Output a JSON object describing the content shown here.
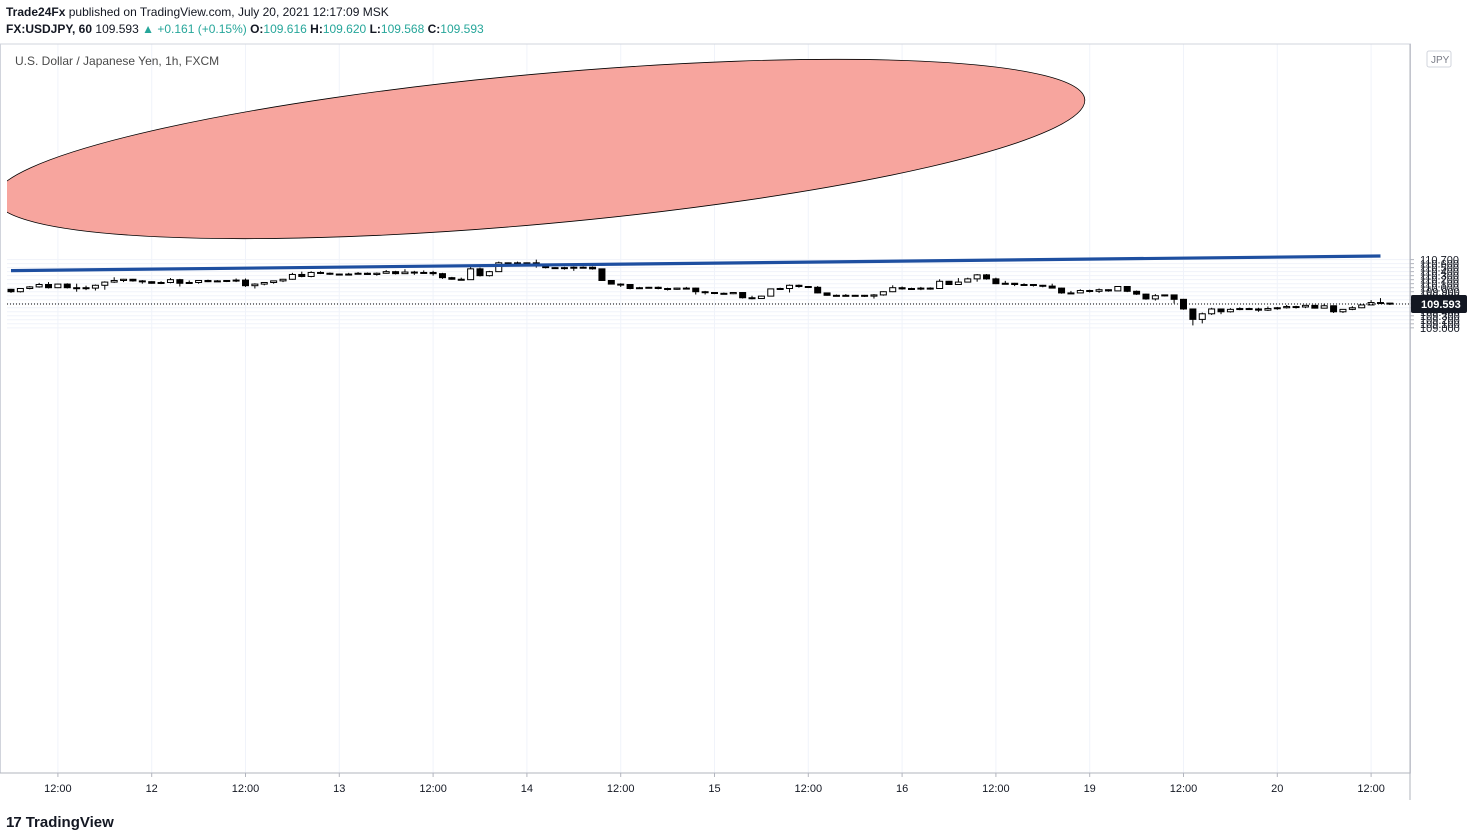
{
  "header": {
    "author": "Trade24Fx",
    "published_text": "published on TradingView.com, July 20, 2021 12:17:09 MSK",
    "symbol": "FX:USDJPY, 60",
    "last": "109.593",
    "change": "▲ +0.161 (+0.15%)",
    "o_label": "O:",
    "o_value": "109.616",
    "h_label": "H:",
    "h_value": "109.620",
    "l_label": "L:",
    "l_value": "109.568",
    "c_label": "C:",
    "c_value": "109.593"
  },
  "footer": {
    "brand": "TradingView",
    "logo_mark": "17"
  },
  "colors": {
    "up_fill": "#ffffff",
    "down_fill": "#000000",
    "wick": "#000000",
    "ellipse_fill": "#f7a099",
    "trendline": "#1e4fa0",
    "grid": "#f0f3fa",
    "price_tag_bg": "#131722",
    "change_text": "#26a69a"
  },
  "chart_data": {
    "type": "candlestick",
    "title": "U.S. Dollar / Japanese Yen, 1h, FXCM",
    "currency_label": "JPY",
    "current_price": "109.593",
    "ylim": [
      108.98,
      110.74
    ],
    "y_ticks": [
      "110.700",
      "110.600",
      "110.500",
      "110.400",
      "110.300",
      "110.200",
      "110.100",
      "110.000",
      "109.900",
      "109.800",
      "109.700",
      "109.600",
      "109.500",
      "109.400",
      "109.300",
      "109.200",
      "109.100",
      "109.000"
    ],
    "x_ticks": [
      "12:00",
      "12",
      "12:00",
      "13",
      "12:00",
      "14",
      "12:00",
      "15",
      "12:00",
      "16",
      "12:00",
      "19",
      "12:00",
      "20",
      "12:00"
    ],
    "x_tick_index": [
      5,
      15,
      25,
      35,
      45,
      55,
      65,
      75,
      85,
      95,
      105,
      115,
      125,
      135,
      145
    ],
    "annotations": [
      {
        "type": "ellipse",
        "note": "highlighted zone around upper trendline"
      },
      {
        "type": "trendline",
        "from": {
          "index": 0,
          "price": 110.425
        },
        "to": {
          "index": 146,
          "price": 110.79
        }
      }
    ],
    "candles": [
      [
        109.96,
        109.9,
        109.97,
        109.87
      ],
      [
        109.9,
        109.98,
        109.99,
        109.88
      ],
      [
        109.98,
        110.02,
        110.04,
        109.96
      ],
      [
        110.02,
        110.08,
        110.12,
        110.0
      ],
      [
        110.08,
        110.0,
        110.14,
        109.98
      ],
      [
        110.0,
        110.09,
        110.1,
        109.99
      ],
      [
        110.09,
        110.0,
        110.11,
        109.98
      ],
      [
        110.0,
        110.0,
        110.1,
        109.9
      ],
      [
        110.0,
        109.99,
        110.05,
        109.94
      ],
      [
        109.99,
        110.06,
        110.08,
        109.93
      ],
      [
        110.06,
        110.14,
        110.16,
        109.95
      ],
      [
        110.14,
        110.18,
        110.26,
        110.12
      ],
      [
        110.18,
        110.21,
        110.22,
        110.14
      ],
      [
        110.21,
        110.17,
        110.22,
        110.15
      ],
      [
        110.17,
        110.15,
        110.19,
        110.1
      ],
      [
        110.15,
        110.11,
        110.16,
        110.1
      ],
      [
        110.11,
        110.13,
        110.16,
        110.09
      ],
      [
        110.13,
        110.2,
        110.24,
        110.11
      ],
      [
        110.2,
        110.11,
        110.22,
        110.03
      ],
      [
        110.11,
        110.13,
        110.18,
        110.1
      ],
      [
        110.13,
        110.18,
        110.19,
        110.1
      ],
      [
        110.18,
        110.15,
        110.2,
        110.14
      ],
      [
        110.15,
        110.17,
        110.19,
        110.15
      ],
      [
        110.17,
        110.18,
        110.19,
        110.14
      ],
      [
        110.18,
        110.19,
        110.23,
        110.14
      ],
      [
        110.19,
        110.05,
        110.23,
        110.02
      ],
      [
        110.05,
        110.09,
        110.11,
        109.98
      ],
      [
        110.09,
        110.13,
        110.14,
        110.06
      ],
      [
        110.13,
        110.17,
        110.18,
        110.1
      ],
      [
        110.17,
        110.21,
        110.22,
        110.14
      ],
      [
        110.21,
        110.33,
        110.37,
        110.2
      ],
      [
        110.33,
        110.28,
        110.4,
        110.26
      ],
      [
        110.28,
        110.38,
        110.41,
        110.26
      ],
      [
        110.38,
        110.36,
        110.41,
        110.34
      ],
      [
        110.36,
        110.34,
        110.38,
        110.32
      ],
      [
        110.34,
        110.34,
        110.35,
        110.33
      ],
      [
        110.34,
        110.34,
        110.37,
        110.31
      ],
      [
        110.34,
        110.36,
        110.39,
        110.33
      ],
      [
        110.36,
        110.33,
        110.38,
        110.32
      ],
      [
        110.33,
        110.36,
        110.38,
        110.3
      ],
      [
        110.36,
        110.4,
        110.44,
        110.35
      ],
      [
        110.4,
        110.35,
        110.42,
        110.33
      ],
      [
        110.35,
        110.39,
        110.46,
        110.36
      ],
      [
        110.39,
        110.38,
        110.42,
        110.32
      ],
      [
        110.38,
        110.38,
        110.43,
        110.37
      ],
      [
        110.38,
        110.35,
        110.42,
        110.3
      ],
      [
        110.35,
        110.25,
        110.37,
        110.22
      ],
      [
        110.25,
        110.21,
        110.27,
        110.2
      ],
      [
        110.21,
        110.2,
        110.25,
        110.19
      ],
      [
        110.2,
        110.47,
        110.55,
        110.2
      ],
      [
        110.47,
        110.3,
        110.5,
        110.28
      ],
      [
        110.3,
        110.4,
        110.42,
        110.28
      ],
      [
        110.4,
        110.62,
        110.65,
        110.41
      ],
      [
        110.62,
        110.6,
        110.63,
        110.58
      ],
      [
        110.6,
        110.62,
        110.65,
        110.59
      ],
      [
        110.62,
        110.62,
        110.63,
        110.58
      ],
      [
        110.62,
        110.55,
        110.7,
        110.5
      ],
      [
        110.55,
        110.5,
        110.55,
        110.48
      ],
      [
        110.5,
        110.5,
        110.51,
        110.48
      ],
      [
        110.5,
        110.5,
        110.52,
        110.45
      ],
      [
        110.5,
        110.51,
        110.53,
        110.42
      ],
      [
        110.51,
        110.51,
        110.53,
        110.49
      ],
      [
        110.51,
        110.47,
        110.53,
        110.45
      ],
      [
        110.47,
        110.18,
        110.47,
        110.17
      ],
      [
        110.18,
        110.09,
        110.19,
        110.08
      ],
      [
        110.09,
        110.08,
        110.11,
        110.02
      ],
      [
        110.08,
        109.98,
        110.09,
        109.96
      ],
      [
        109.98,
        110.0,
        110.02,
        109.97
      ],
      [
        110.0,
        110.01,
        110.02,
        109.98
      ],
      [
        110.01,
        109.98,
        110.03,
        109.96
      ],
      [
        109.98,
        109.96,
        110.0,
        109.93
      ],
      [
        109.96,
        109.99,
        110.0,
        109.95
      ],
      [
        109.99,
        109.99,
        110.02,
        109.97
      ],
      [
        109.99,
        109.9,
        110.0,
        109.83
      ],
      [
        109.9,
        109.88,
        109.92,
        109.83
      ],
      [
        109.88,
        109.86,
        109.89,
        109.84
      ],
      [
        109.86,
        109.85,
        109.88,
        109.83
      ],
      [
        109.85,
        109.88,
        109.89,
        109.84
      ],
      [
        109.88,
        109.75,
        109.89,
        109.73
      ],
      [
        109.75,
        109.73,
        109.8,
        109.71
      ],
      [
        109.73,
        109.79,
        109.8,
        109.72
      ],
      [
        109.79,
        109.97,
        109.98,
        109.79
      ],
      [
        109.97,
        109.98,
        110.0,
        109.96
      ],
      [
        109.98,
        110.06,
        110.08,
        109.88
      ],
      [
        110.06,
        110.03,
        110.08,
        110.0
      ],
      [
        110.03,
        110.01,
        110.04,
        109.99
      ],
      [
        110.01,
        109.87,
        110.04,
        109.86
      ],
      [
        109.87,
        109.81,
        109.88,
        109.8
      ],
      [
        109.81,
        109.79,
        109.83,
        109.78
      ],
      [
        109.79,
        109.81,
        109.84,
        109.78
      ],
      [
        109.81,
        109.81,
        109.82,
        109.79
      ],
      [
        109.81,
        109.79,
        109.82,
        109.77
      ],
      [
        109.79,
        109.82,
        109.84,
        109.73
      ],
      [
        109.82,
        109.9,
        109.91,
        109.8
      ],
      [
        109.9,
        110.0,
        110.06,
        109.89
      ],
      [
        110.0,
        109.97,
        110.03,
        109.95
      ],
      [
        109.97,
        109.98,
        110.0,
        109.95
      ],
      [
        109.98,
        109.99,
        110.02,
        109.94
      ],
      [
        109.99,
        109.98,
        110.01,
        109.95
      ],
      [
        109.98,
        110.16,
        110.21,
        109.98
      ],
      [
        110.16,
        110.08,
        110.17,
        110.07
      ],
      [
        110.08,
        110.14,
        110.24,
        110.1
      ],
      [
        110.14,
        110.22,
        110.25,
        110.13
      ],
      [
        110.22,
        110.32,
        110.34,
        110.15
      ],
      [
        110.32,
        110.22,
        110.34,
        110.2
      ],
      [
        110.22,
        110.1,
        110.25,
        110.09
      ],
      [
        110.1,
        110.11,
        110.17,
        110.09
      ],
      [
        110.11,
        110.08,
        110.12,
        110.04
      ],
      [
        110.08,
        110.08,
        110.11,
        110.05
      ],
      [
        110.08,
        110.06,
        110.09,
        110.03
      ],
      [
        110.06,
        110.04,
        110.07,
        110.01
      ],
      [
        110.04,
        109.99,
        110.1,
        109.99
      ],
      [
        109.99,
        109.87,
        110.0,
        109.85
      ],
      [
        109.87,
        109.87,
        109.92,
        109.85
      ],
      [
        109.87,
        109.93,
        109.96,
        109.86
      ],
      [
        109.93,
        109.91,
        109.95,
        109.88
      ],
      [
        109.91,
        109.95,
        109.98,
        109.87
      ],
      [
        109.95,
        109.92,
        109.96,
        109.9
      ],
      [
        109.92,
        110.03,
        110.04,
        109.92
      ],
      [
        110.03,
        109.91,
        110.03,
        109.89
      ],
      [
        109.91,
        109.84,
        109.93,
        109.82
      ],
      [
        109.84,
        109.72,
        109.85,
        109.7
      ],
      [
        109.72,
        109.8,
        109.84,
        109.68
      ],
      [
        109.8,
        109.82,
        109.83,
        109.78
      ],
      [
        109.82,
        109.71,
        109.83,
        109.61
      ],
      [
        109.71,
        109.47,
        109.72,
        109.45
      ],
      [
        109.47,
        109.21,
        109.48,
        109.06
      ],
      [
        109.21,
        109.35,
        109.38,
        109.11
      ],
      [
        109.35,
        109.47,
        109.5,
        109.32
      ],
      [
        109.47,
        109.4,
        109.48,
        109.34
      ],
      [
        109.4,
        109.46,
        109.49,
        109.38
      ],
      [
        109.46,
        109.48,
        109.51,
        109.44
      ],
      [
        109.48,
        109.47,
        109.5,
        109.45
      ],
      [
        109.47,
        109.44,
        109.5,
        109.4
      ],
      [
        109.44,
        109.48,
        109.53,
        109.42
      ],
      [
        109.48,
        109.5,
        109.52,
        109.45
      ],
      [
        109.5,
        109.53,
        109.57,
        109.48
      ],
      [
        109.53,
        109.52,
        109.55,
        109.48
      ],
      [
        109.52,
        109.56,
        109.57,
        109.49
      ],
      [
        109.56,
        109.49,
        109.57,
        109.48
      ],
      [
        109.49,
        109.55,
        109.6,
        109.48
      ],
      [
        109.55,
        109.4,
        109.56,
        109.37
      ],
      [
        109.4,
        109.46,
        109.47,
        109.37
      ],
      [
        109.46,
        109.5,
        109.54,
        109.44
      ],
      [
        109.5,
        109.57,
        109.58,
        109.49
      ],
      [
        109.57,
        109.63,
        109.69,
        109.57
      ],
      [
        109.63,
        109.616,
        109.74,
        109.6
      ],
      [
        109.616,
        109.593,
        109.62,
        109.568
      ]
    ]
  }
}
